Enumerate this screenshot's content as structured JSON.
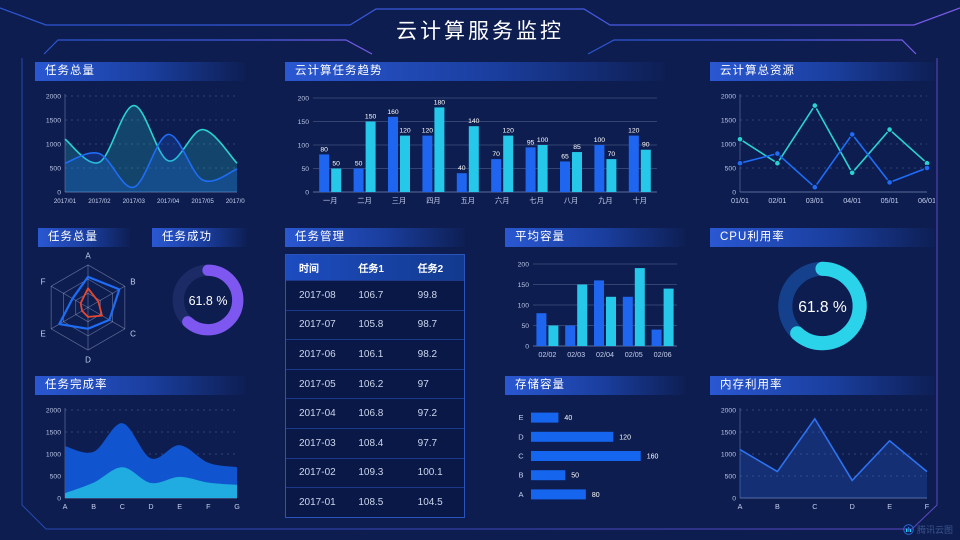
{
  "header": {
    "title": "云计算服务监控"
  },
  "watermark": {
    "label": "腾讯云图"
  },
  "colors": {
    "background": "#0d1d50",
    "accent_blue": "#1e66f0",
    "accent_cyan": "#25c8e8",
    "accent_teal": "#2bd3d0",
    "accent_purple": "#7d57f0",
    "accent_red": "#e8472e"
  },
  "chart_data": [
    {
      "id": "task_total_line",
      "type": "line",
      "smooth": true,
      "area": true,
      "markers": false,
      "title": "任务总量",
      "categories": [
        "2017/01",
        "2017/02",
        "2017/03",
        "2017/04",
        "2017/05",
        "2017/06"
      ],
      "ymax": 2000,
      "yticks": [
        0,
        500,
        1000,
        1500,
        2000
      ],
      "grid": "dash",
      "series": [
        {
          "color": "#2bd3d0",
          "values": [
            1100,
            620,
            1800,
            650,
            1300,
            600
          ]
        },
        {
          "color": "#1f6cf5",
          "values": [
            600,
            800,
            100,
            1200,
            250,
            480
          ]
        }
      ]
    },
    {
      "id": "task_trend",
      "type": "bar",
      "labels": true,
      "title": "云计算任务趋势",
      "categories": [
        "一月",
        "二月",
        "三月",
        "四月",
        "五月",
        "六月",
        "七月",
        "八月",
        "九月",
        "十月"
      ],
      "ymax": 200,
      "yticks": [
        0,
        50,
        100,
        150,
        200
      ],
      "grid": "solid",
      "series": [
        {
          "color": "#1e66f0",
          "values": [
            80,
            50,
            160,
            120,
            40,
            70,
            95,
            65,
            100,
            120
          ]
        },
        {
          "color": "#25c8e8",
          "values": [
            50,
            150,
            120,
            180,
            140,
            120,
            100,
            85,
            70,
            90
          ]
        }
      ]
    },
    {
      "id": "total_resources",
      "type": "line",
      "smooth": false,
      "area": false,
      "markers": true,
      "title": "云计算总资源",
      "categories": [
        "01/01",
        "02/01",
        "03/01",
        "04/01",
        "05/01",
        "06/01"
      ],
      "ymax": 2000,
      "yticks": [
        0,
        500,
        1000,
        1500,
        2000
      ],
      "grid": "dash",
      "series": [
        {
          "color": "#2bd3d0",
          "values": [
            1100,
            600,
            1800,
            400,
            1300,
            600
          ]
        },
        {
          "color": "#1f6cf5",
          "values": [
            600,
            800,
            100,
            1200,
            200,
            500
          ]
        }
      ]
    },
    {
      "id": "task_total_radar",
      "type": "radar",
      "title": "任务总量",
      "labels": [
        "A",
        "B",
        "C",
        "D",
        "E",
        "F"
      ],
      "max": 100,
      "series": [
        {
          "color": "#1f6cf5",
          "values": [
            72,
            85,
            58,
            50,
            78,
            42
          ]
        },
        {
          "color": "#e8472e",
          "values": [
            45,
            28,
            38,
            22,
            16,
            20
          ]
        }
      ]
    },
    {
      "id": "task_success",
      "type": "donut",
      "title": "任务成功",
      "percent": 61.8,
      "label": "61.8 %",
      "color": "#7d57f0",
      "track": "#1c2b66"
    },
    {
      "id": "task_mgmt",
      "type": "table",
      "title": "任务管理",
      "columns": [
        "时间",
        "任务1",
        "任务2"
      ],
      "rows": [
        [
          "2017-08",
          "106.7",
          "99.8"
        ],
        [
          "2017-07",
          "105.8",
          "98.7"
        ],
        [
          "2017-06",
          "106.1",
          "98.2"
        ],
        [
          "2017-05",
          "106.2",
          "97"
        ],
        [
          "2017-04",
          "106.8",
          "97.2"
        ],
        [
          "2017-03",
          "108.4",
          "97.7"
        ],
        [
          "2017-02",
          "109.3",
          "100.1"
        ],
        [
          "2017-01",
          "108.5",
          "104.5"
        ]
      ]
    },
    {
      "id": "avg_capacity",
      "type": "bar",
      "labels": false,
      "title": "平均容量",
      "categories": [
        "02/02",
        "02/03",
        "02/04",
        "02/05",
        "02/06"
      ],
      "ymax": 200,
      "yticks": [
        0,
        50,
        100,
        150,
        200
      ],
      "grid": "solid",
      "series": [
        {
          "color": "#1e66f0",
          "values": [
            80,
            50,
            160,
            120,
            40
          ]
        },
        {
          "color": "#25c8e8",
          "values": [
            50,
            150,
            120,
            190,
            140
          ]
        }
      ]
    },
    {
      "id": "cpu_usage",
      "type": "donut",
      "title": "CPU利用率",
      "percent": 61.8,
      "label": "61.8 %",
      "color": "#2bd3ea",
      "track": "#15418c"
    },
    {
      "id": "task_completion",
      "type": "area",
      "smooth": true,
      "title": "任务完成率",
      "categories": [
        "A",
        "B",
        "C",
        "D",
        "E",
        "F",
        "G"
      ],
      "ymax": 2000,
      "yticks": [
        0,
        500,
        1000,
        1500,
        2000
      ],
      "grid": "dash",
      "series": [
        {
          "color": "#1159d6",
          "values": [
            1180,
            1050,
            1700,
            900,
            1200,
            800,
            700
          ]
        },
        {
          "color": "#22b1e0",
          "values": [
            110,
            350,
            700,
            340,
            480,
            350,
            300
          ]
        }
      ]
    },
    {
      "id": "storage",
      "type": "hbar",
      "title": "存储容量",
      "categories": [
        "E",
        "D",
        "C",
        "B",
        "A"
      ],
      "values": [
        40,
        120,
        160,
        50,
        80
      ],
      "xmax": 175,
      "color": "#1565ee"
    },
    {
      "id": "memory_usage",
      "type": "line",
      "smooth": false,
      "area": true,
      "markers": false,
      "title": "内存利用率",
      "categories": [
        "A",
        "B",
        "C",
        "D",
        "E",
        "F"
      ],
      "ymax": 2000,
      "yticks": [
        0,
        500,
        1000,
        1500,
        2000
      ],
      "grid": "dash",
      "series": [
        {
          "color": "#2e72f2",
          "values": [
            1100,
            600,
            1800,
            400,
            1300,
            600
          ]
        }
      ]
    }
  ]
}
